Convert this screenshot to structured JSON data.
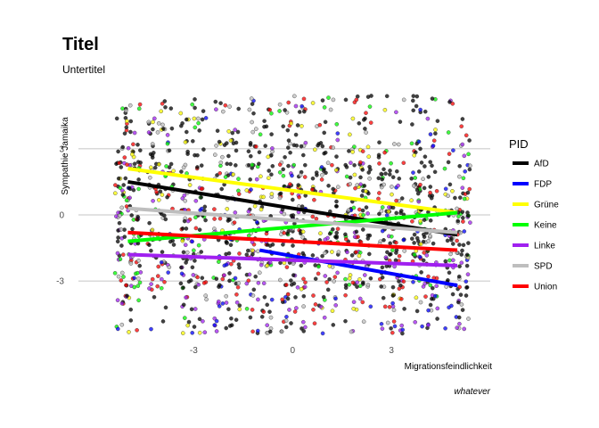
{
  "chart_data": {
    "type": "scatter",
    "title": "Titel",
    "subtitle": "Untertitel",
    "xlabel": "Migrationsfeindlichkeit",
    "ylabel": "Sympathie Jamaika",
    "caption": "whatever",
    "xlim": [
      -6.5,
      6
    ],
    "ylim": [
      -5.3,
      5.3
    ],
    "x_ticks": [
      -3,
      0,
      3
    ],
    "y_ticks": [
      -3,
      0,
      3
    ],
    "x_tick_labels": [
      "-3",
      "0",
      "3"
    ],
    "y_tick_labels": [
      "-3",
      "0",
      "3"
    ],
    "grid": "horizontal major lines only",
    "legend": {
      "title": "PID",
      "placement": "right",
      "items": [
        {
          "label": "AfD",
          "color": "#000000"
        },
        {
          "label": "FDP",
          "color": "#0000ff"
        },
        {
          "label": "Grüne",
          "color": "#ffff00"
        },
        {
          "label": "Keine",
          "color": "#00ff00"
        },
        {
          "label": "Linke",
          "color": "#a020f0"
        },
        {
          "label": "SPD",
          "color": "#bebebe"
        },
        {
          "label": "Union",
          "color": "#ff0000"
        }
      ]
    },
    "points_note": "jittered scatter of several hundred individual respondents per party across the full x and y range",
    "series": [
      {
        "name": "AfD",
        "color": "#000000",
        "trend": {
          "x": [
            -5,
            5
          ],
          "y": [
            1.5,
            -0.9
          ]
        }
      },
      {
        "name": "FDP",
        "color": "#0000ff",
        "trend": {
          "x": [
            -1,
            5
          ],
          "y": [
            -1.6,
            -3.2
          ]
        }
      },
      {
        "name": "Grüne",
        "color": "#ffff00",
        "trend": {
          "x": [
            -5,
            5
          ],
          "y": [
            2.1,
            0.1
          ]
        }
      },
      {
        "name": "Keine",
        "color": "#00ff00",
        "trend": {
          "x": [
            -5,
            5
          ],
          "y": [
            -1.2,
            0.1
          ]
        }
      },
      {
        "name": "Linke",
        "color": "#a020f0",
        "trend": {
          "x": [
            -5,
            5
          ],
          "y": [
            -1.8,
            -2.3
          ]
        }
      },
      {
        "name": "SPD",
        "color": "#bebebe",
        "trend": {
          "x": [
            -5,
            5
          ],
          "y": [
            0.3,
            -0.8
          ]
        }
      },
      {
        "name": "Union",
        "color": "#ff0000",
        "trend": {
          "x": [
            -5,
            5
          ],
          "y": [
            -0.8,
            -1.6
          ]
        }
      }
    ]
  }
}
